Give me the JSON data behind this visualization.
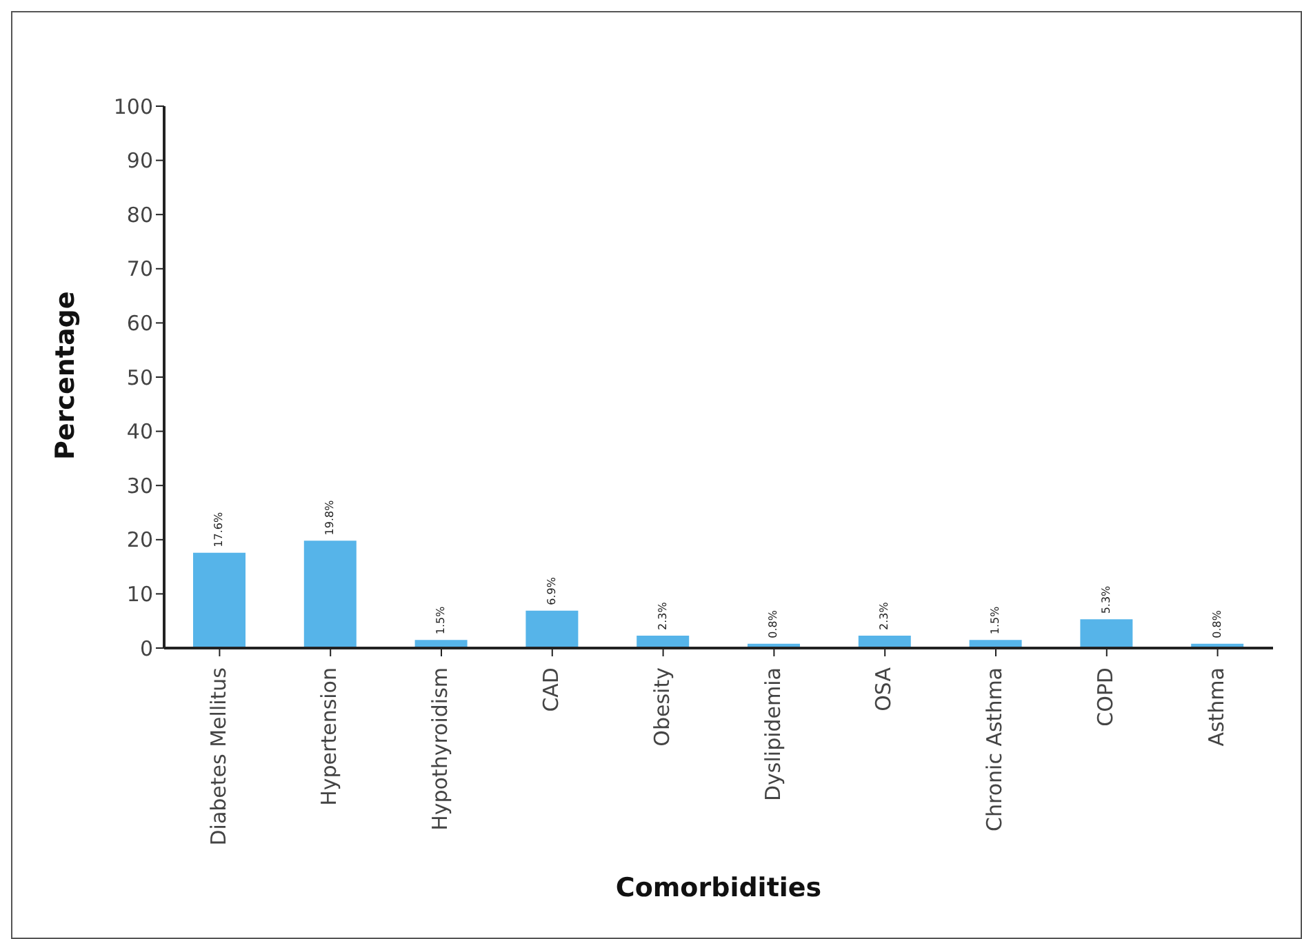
{
  "chart_data": {
    "type": "bar",
    "xlabel": "Comorbidities",
    "ylabel": "Percentage",
    "categories": [
      "Diabetes Mellitus",
      "Hypertension",
      "Hypothyroidism",
      "CAD",
      "Obesity",
      "Dyslipidemia",
      "OSA",
      "Chronic Asthma",
      "COPD",
      "Asthma"
    ],
    "values": [
      17.6,
      19.8,
      1.5,
      6.9,
      2.3,
      0.8,
      2.3,
      1.5,
      5.3,
      0.8
    ],
    "value_labels": [
      "17.6%",
      "19.8%",
      "1.5%",
      "6.9%",
      "2.3%",
      "0.8%",
      "2.3%",
      "1.5%",
      "5.3%",
      "0.8%"
    ],
    "color": "#56b4e9",
    "ylim": [
      0,
      100
    ],
    "yticks": [
      0,
      10,
      20,
      30,
      40,
      50,
      60,
      70,
      80,
      90,
      100
    ],
    "grid": false
  }
}
